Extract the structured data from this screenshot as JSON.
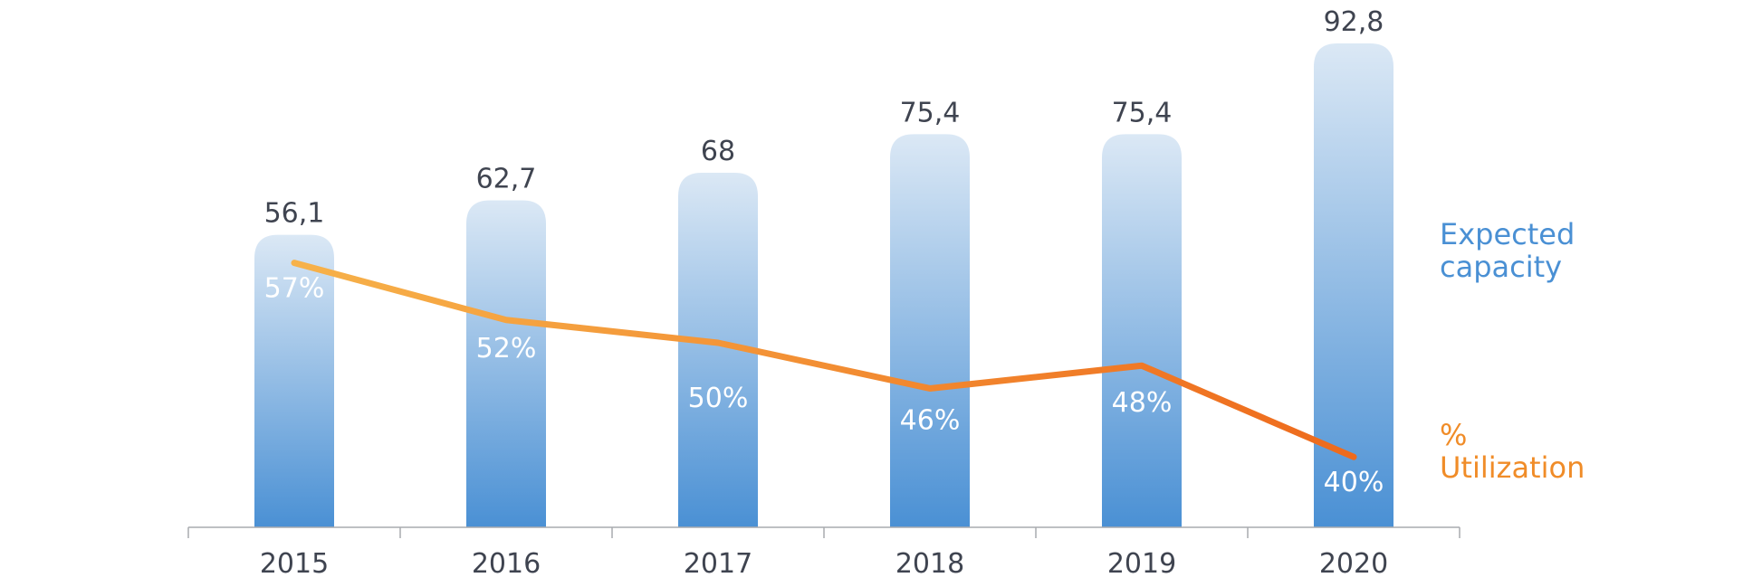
{
  "chart_data": {
    "type": "bar",
    "categories": [
      "2015",
      "2016",
      "2017",
      "2018",
      "2019",
      "2020"
    ],
    "series": [
      {
        "name": "Expected capacity",
        "kind": "bar",
        "values": [
          56.1,
          62.7,
          68,
          75.4,
          75.4,
          92.8
        ],
        "labels": [
          "56,1",
          "62,7",
          "68",
          "75,4",
          "75,4",
          "92,8"
        ],
        "color": "#4a90d4"
      },
      {
        "name": "% Utilization",
        "kind": "line",
        "values": [
          57,
          52,
          50,
          46,
          48,
          40
        ],
        "labels": [
          "57%",
          "52%",
          "50%",
          "46%",
          "48%",
          "40%"
        ],
        "color": "#f08c28"
      }
    ],
    "legend": [
      {
        "lines": [
          "Expected",
          "capacity"
        ],
        "color": "#4a90d4"
      },
      {
        "lines": [
          "%",
          "Utilization"
        ],
        "color": "#f08c28"
      }
    ],
    "legend_position": "right",
    "grid": false,
    "bar_gradient": {
      "top": "#dbe8f5",
      "bottom": "#4a90d4"
    },
    "line_gradient": {
      "start": "#f7b24a",
      "end": "#ee6a1c"
    }
  }
}
